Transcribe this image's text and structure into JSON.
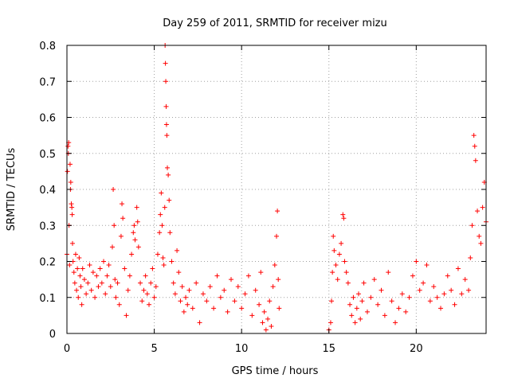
{
  "chart_data": {
    "type": "scatter",
    "title": "Day 259 of 2011, SRMTID for receiver mizu",
    "xlabel": "GPS time / hours",
    "ylabel": "SRMTID / TECUs",
    "xlim": [
      0,
      24
    ],
    "ylim": [
      0,
      0.8
    ],
    "x_ticks": [
      0,
      5,
      10,
      15,
      20
    ],
    "y_ticks": [
      0,
      0.1,
      0.2,
      0.3,
      0.4,
      0.5,
      0.6,
      0.7,
      0.8
    ],
    "x_tick_labels": [
      "0",
      "5",
      "10",
      "15",
      "20"
    ],
    "y_tick_labels": [
      "0",
      "0.1",
      "0.2",
      "0.3",
      "0.4",
      "0.5",
      "0.6",
      "0.7",
      "0.8"
    ],
    "grid": true,
    "marker": "+",
    "color": "#ff0000",
    "series": [
      {
        "name": "SRMTID",
        "points": [
          [
            0.0,
            0.22
          ],
          [
            0.03,
            0.45
          ],
          [
            0.06,
            0.52
          ],
          [
            0.08,
            0.5
          ],
          [
            0.1,
            0.53
          ],
          [
            0.12,
            0.3
          ],
          [
            0.15,
            0.19
          ],
          [
            0.18,
            0.47
          ],
          [
            0.2,
            0.4
          ],
          [
            0.22,
            0.42
          ],
          [
            0.25,
            0.36
          ],
          [
            0.28,
            0.35
          ],
          [
            0.3,
            0.33
          ],
          [
            0.32,
            0.25
          ],
          [
            0.35,
            0.2
          ],
          [
            0.4,
            0.17
          ],
          [
            0.45,
            0.14
          ],
          [
            0.5,
            0.22
          ],
          [
            0.55,
            0.12
          ],
          [
            0.6,
            0.18
          ],
          [
            0.65,
            0.1
          ],
          [
            0.7,
            0.21
          ],
          [
            0.75,
            0.16
          ],
          [
            0.8,
            0.13
          ],
          [
            0.85,
            0.08
          ],
          [
            0.9,
            0.18
          ],
          [
            1.0,
            0.15
          ],
          [
            1.1,
            0.11
          ],
          [
            1.2,
            0.14
          ],
          [
            1.3,
            0.19
          ],
          [
            1.4,
            0.12
          ],
          [
            1.5,
            0.17
          ],
          [
            1.6,
            0.1
          ],
          [
            1.7,
            0.16
          ],
          [
            1.8,
            0.13
          ],
          [
            1.9,
            0.18
          ],
          [
            2.0,
            0.14
          ],
          [
            2.1,
            0.2
          ],
          [
            2.2,
            0.11
          ],
          [
            2.3,
            0.16
          ],
          [
            2.4,
            0.19
          ],
          [
            2.5,
            0.13
          ],
          [
            2.6,
            0.24
          ],
          [
            2.65,
            0.4
          ],
          [
            2.7,
            0.3
          ],
          [
            2.75,
            0.15
          ],
          [
            2.8,
            0.1
          ],
          [
            2.9,
            0.14
          ],
          [
            3.0,
            0.08
          ],
          [
            3.1,
            0.27
          ],
          [
            3.15,
            0.36
          ],
          [
            3.2,
            0.32
          ],
          [
            3.3,
            0.18
          ],
          [
            3.4,
            0.05
          ],
          [
            3.5,
            0.12
          ],
          [
            3.6,
            0.16
          ],
          [
            3.7,
            0.22
          ],
          [
            3.8,
            0.28
          ],
          [
            3.85,
            0.3
          ],
          [
            3.9,
            0.26
          ],
          [
            4.0,
            0.35
          ],
          [
            4.05,
            0.31
          ],
          [
            4.1,
            0.24
          ],
          [
            4.2,
            0.14
          ],
          [
            4.3,
            0.09
          ],
          [
            4.4,
            0.12
          ],
          [
            4.5,
            0.16
          ],
          [
            4.6,
            0.11
          ],
          [
            4.7,
            0.08
          ],
          [
            4.8,
            0.14
          ],
          [
            4.9,
            0.18
          ],
          [
            5.0,
            0.1
          ],
          [
            5.1,
            0.13
          ],
          [
            5.2,
            0.22
          ],
          [
            5.3,
            0.28
          ],
          [
            5.35,
            0.33
          ],
          [
            5.4,
            0.39
          ],
          [
            5.45,
            0.3
          ],
          [
            5.5,
            0.21
          ],
          [
            5.55,
            0.19
          ],
          [
            5.6,
            0.35
          ],
          [
            5.62,
            0.8
          ],
          [
            5.64,
            0.75
          ],
          [
            5.66,
            0.7
          ],
          [
            5.68,
            0.63
          ],
          [
            5.7,
            0.58
          ],
          [
            5.72,
            0.55
          ],
          [
            5.75,
            0.46
          ],
          [
            5.8,
            0.44
          ],
          [
            5.85,
            0.37
          ],
          [
            5.9,
            0.28
          ],
          [
            6.0,
            0.2
          ],
          [
            6.1,
            0.14
          ],
          [
            6.2,
            0.11
          ],
          [
            6.3,
            0.23
          ],
          [
            6.4,
            0.17
          ],
          [
            6.5,
            0.09
          ],
          [
            6.6,
            0.13
          ],
          [
            6.7,
            0.06
          ],
          [
            6.8,
            0.1
          ],
          [
            6.9,
            0.08
          ],
          [
            7.0,
            0.12
          ],
          [
            7.2,
            0.07
          ],
          [
            7.4,
            0.14
          ],
          [
            7.6,
            0.03
          ],
          [
            7.8,
            0.11
          ],
          [
            8.0,
            0.09
          ],
          [
            8.2,
            0.13
          ],
          [
            8.4,
            0.07
          ],
          [
            8.6,
            0.16
          ],
          [
            8.8,
            0.1
          ],
          [
            9.0,
            0.12
          ],
          [
            9.2,
            0.06
          ],
          [
            9.4,
            0.15
          ],
          [
            9.6,
            0.09
          ],
          [
            9.8,
            0.13
          ],
          [
            10.0,
            0.07
          ],
          [
            10.2,
            0.11
          ],
          [
            10.4,
            0.16
          ],
          [
            10.6,
            0.05
          ],
          [
            10.8,
            0.12
          ],
          [
            11.0,
            0.08
          ],
          [
            11.1,
            0.17
          ],
          [
            11.2,
            0.03
          ],
          [
            11.3,
            0.06
          ],
          [
            11.4,
            0.01
          ],
          [
            11.5,
            0.04
          ],
          [
            11.6,
            0.09
          ],
          [
            11.7,
            0.02
          ],
          [
            11.8,
            0.13
          ],
          [
            11.9,
            0.19
          ],
          [
            12.0,
            0.27
          ],
          [
            12.05,
            0.34
          ],
          [
            12.1,
            0.15
          ],
          [
            12.15,
            0.07
          ],
          [
            15.0,
            0.01
          ],
          [
            15.1,
            0.03
          ],
          [
            15.15,
            0.09
          ],
          [
            15.2,
            0.17
          ],
          [
            15.25,
            0.27
          ],
          [
            15.3,
            0.23
          ],
          [
            15.4,
            0.19
          ],
          [
            15.5,
            0.15
          ],
          [
            15.6,
            0.22
          ],
          [
            15.7,
            0.25
          ],
          [
            15.8,
            0.33
          ],
          [
            15.85,
            0.32
          ],
          [
            15.9,
            0.2
          ],
          [
            16.0,
            0.17
          ],
          [
            16.1,
            0.14
          ],
          [
            16.2,
            0.08
          ],
          [
            16.3,
            0.05
          ],
          [
            16.4,
            0.1
          ],
          [
            16.5,
            0.03
          ],
          [
            16.6,
            0.07
          ],
          [
            16.7,
            0.11
          ],
          [
            16.8,
            0.04
          ],
          [
            16.9,
            0.09
          ],
          [
            17.0,
            0.14
          ],
          [
            17.2,
            0.06
          ],
          [
            17.4,
            0.1
          ],
          [
            17.6,
            0.15
          ],
          [
            17.8,
            0.08
          ],
          [
            18.0,
            0.12
          ],
          [
            18.2,
            0.05
          ],
          [
            18.4,
            0.17
          ],
          [
            18.6,
            0.09
          ],
          [
            18.8,
            0.03
          ],
          [
            19.0,
            0.07
          ],
          [
            19.2,
            0.11
          ],
          [
            19.4,
            0.06
          ],
          [
            19.6,
            0.1
          ],
          [
            19.8,
            0.16
          ],
          [
            20.0,
            0.2
          ],
          [
            20.2,
            0.12
          ],
          [
            20.4,
            0.14
          ],
          [
            20.6,
            0.19
          ],
          [
            20.8,
            0.09
          ],
          [
            21.0,
            0.13
          ],
          [
            21.2,
            0.1
          ],
          [
            21.4,
            0.07
          ],
          [
            21.6,
            0.11
          ],
          [
            21.8,
            0.16
          ],
          [
            22.0,
            0.12
          ],
          [
            22.2,
            0.08
          ],
          [
            22.4,
            0.18
          ],
          [
            22.6,
            0.11
          ],
          [
            22.8,
            0.15
          ],
          [
            23.0,
            0.12
          ],
          [
            23.1,
            0.21
          ],
          [
            23.2,
            0.3
          ],
          [
            23.3,
            0.55
          ],
          [
            23.35,
            0.52
          ],
          [
            23.4,
            0.48
          ],
          [
            23.5,
            0.34
          ],
          [
            23.6,
            0.27
          ],
          [
            23.7,
            0.25
          ],
          [
            23.8,
            0.35
          ],
          [
            23.9,
            0.42
          ],
          [
            24.0,
            0.31
          ]
        ]
      }
    ]
  }
}
